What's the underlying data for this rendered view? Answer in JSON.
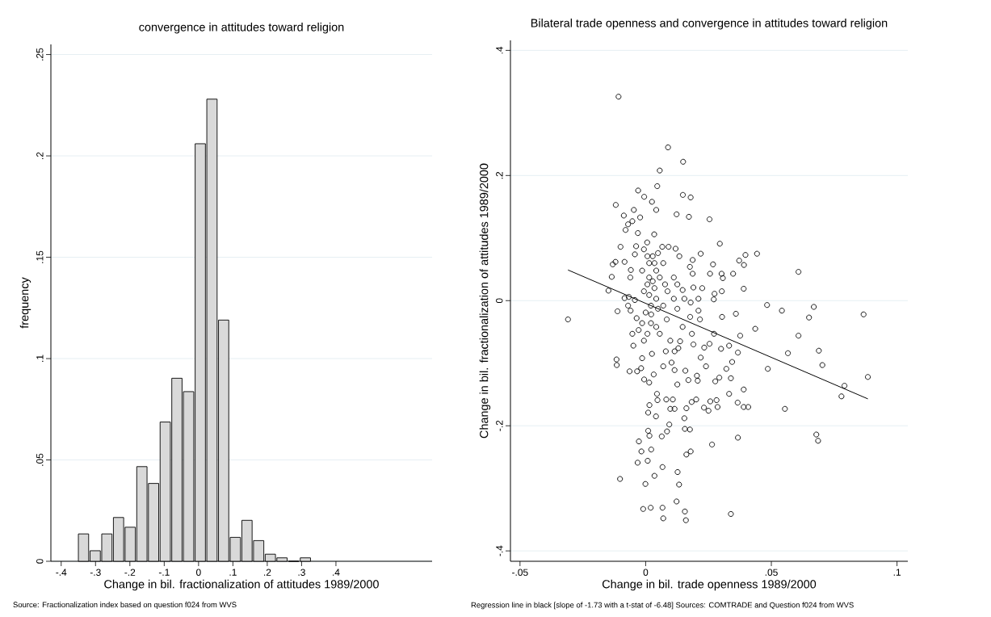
{
  "chart_data": [
    {
      "type": "histogram",
      "title": "convergence in attitudes toward religion",
      "xlabel": "Change in bil. fractionalization of attitudes 1989/2000",
      "ylabel": "frequency",
      "bins": [
        -0.352,
        -0.318,
        -0.284,
        -0.25,
        -0.216,
        -0.182,
        -0.148,
        -0.114,
        -0.08,
        -0.046,
        -0.012,
        0.022,
        0.056,
        0.09,
        0.124,
        0.158,
        0.192,
        0.226,
        0.26,
        0.294,
        0.328
      ],
      "values": [
        0.0135,
        0.0052,
        0.0135,
        0.0216,
        0.0168,
        0.0467,
        0.0384,
        0.0687,
        0.0903,
        0.0837,
        0.206,
        0.228,
        0.119,
        0.0118,
        0.0202,
        0.0102,
        0.0035,
        0.0017,
        0,
        0.0017
      ],
      "color": "#d9d9d9",
      "xlim": [
        -0.43,
        0.68
      ],
      "ylim": [
        0,
        0.255
      ],
      "xticks": [
        {
          "value": -0.4,
          "label": "-.4"
        },
        {
          "value": -0.3,
          "label": "-.3"
        },
        {
          "value": -0.2,
          "label": "-.2"
        },
        {
          "value": -0.1,
          "label": "-.1"
        },
        0,
        {
          "value": 0.1,
          "label": ".1"
        },
        {
          "value": 0.2,
          "label": ".2"
        },
        {
          "value": 0.3,
          "label": ".3"
        },
        {
          "value": 0.4,
          "label": ".4"
        }
      ],
      "yticks": [
        0,
        {
          "value": 0.05,
          "label": ".05"
        },
        {
          "value": 0.1,
          "label": ".1"
        },
        {
          "value": 0.15,
          "label": ".15"
        },
        {
          "value": 0.2,
          "label": ".2"
        },
        {
          "value": 0.25,
          "label": ".25"
        }
      ],
      "grid": "y",
      "annotations": [
        "Source: Fractionalization index based on question f024 from WVS"
      ]
    },
    {
      "type": "scatter",
      "title": "Bilateral trade openness and convergence in attitudes toward religion",
      "xlabel": "Change in bil. trade openness 1989/2000",
      "ylabel": "Change in bil. fractionalization of attitudes 1989/2000",
      "marker": "circle",
      "grid": "y",
      "xlim": [
        -0.0538,
        0.1043
      ],
      "ylim": [
        -0.4166,
        0.416
      ],
      "xticks": [
        {
          "value": -0.05,
          "label": "-.05"
        },
        0,
        {
          "value": 0.05,
          "label": ".05"
        },
        {
          "value": 0.1,
          "label": ".1"
        }
      ],
      "yticks": [
        {
          "value": -0.4,
          "label": "-.4"
        },
        {
          "value": -0.2,
          "label": "-.2"
        },
        0,
        {
          "value": 0.2,
          "label": ".2"
        },
        {
          "value": 0.4,
          "label": ".4"
        }
      ],
      "series": [
        {
          "type": "scatter",
          "color": "#000000",
          "x": [
            -0.0108,
            0.0089,
            0.0149,
            0.0056,
            0.0046,
            -0.003,
            -0.0006,
            0.0148,
            0.0179,
            0.0025,
            -0.0119,
            0.0042,
            -0.0047,
            0.0123,
            0.0172,
            0.0254,
            -0.0087,
            -0.0022,
            -0.0053,
            -0.007,
            -0.008,
            -0.0031,
            0.0034,
            0.0295,
            -0.01,
            0.0219,
            0.0397,
            0.0443,
            0.0372,
            0.0268,
            0.0391,
            0.0608,
            -0.0131,
            -0.012,
            -0.0084,
            -0.0135,
            0.0256,
            0.0302,
            0.0348,
            0.0307,
            0.039,
            -0.0148,
            0.0274,
            0.0303,
            0.0271,
            -0.0084,
            -0.0112,
            -0.0309,
            0.0483,
            0.0542,
            0.0669,
            0.065,
            0.0867,
            0.0359,
            0.0304,
            0.0436,
            0.0376,
            0.0608,
            0.0566,
            0.0689,
            0.0703,
            0.0486,
            0.0884,
            0.0791,
            0.0779,
            0.0554,
            0.0367,
            0.0332,
            0.03,
            0.0344,
            0.0321,
            0.0339,
            0.039,
            0.0332,
            0.0366,
            0.039,
            0.0408,
            0.0367,
            0.0679,
            0.0686,
            0.0264,
            0.0339,
            0.0293,
            0.0282,
            0.0257,
            0.025,
            0.0286,
            0.0232,
            0.0277,
            0.024,
            0.0219,
            0.0254,
            0.0272,
            0.0233,
            0.0204,
            0.0201,
            0.0162,
            0.0183,
            0.0154,
            0.0156,
            0.0176,
            0.0179,
            0.0162,
            0.0127,
            0.0133,
            0.0123,
            0.0156,
            0.016,
            0.0067,
            0.007,
            0.002,
            -0.001,
            -0.0001,
            -0.0102,
            0.0035,
            0.0067,
            -0.0032,
            0.0008,
            -0.0017,
            0.0022,
            -0.0027,
            0.0064,
            0.0015,
            0.001,
            0.0085,
            0.0094,
            0.0041,
            0.001,
            0.0015,
            0.0047,
            0.0082,
            0.0108,
            0.0115,
            0.0098,
            0.0045,
            -0.0006,
            0.0014,
            0.0032,
            -0.0018,
            -0.0064,
            -0.0034,
            -0.0116,
            -0.0115,
            0.007,
            0.0103,
            0.0115,
            0.0126,
            0.0158,
            0.017,
            0.0207,
            0.013,
            0.019,
            0.0184,
            0.0137,
            0.0098,
            0.0115,
            0.008,
            0.0147,
            0.0056,
            0.0025,
            -0.0014,
            -0.0049,
            -0.0053,
            -0.0014,
            -0.0036,
            0.0022,
            0.0084,
            0.0126,
            0.0154,
            0.0179,
            0.021,
            0.0216,
            0.0177,
            0.021,
            0.0225,
            0.019,
            0.0187,
            0.0176,
            0.0187,
            0.0134,
            0.0119,
            0.0091,
            0.0066,
            0.0006,
            -0.0038,
            -0.0043,
            -0.0059,
            -0.0061,
            -0.0067,
            -0.0043,
            -0.006,
            -0.007,
            0.0112,
            0.0087,
            0.0126,
            0.0147,
            0.0112,
            0.0007,
            0.0014,
            0.0028,
            0.0035,
            0.0042,
            0.0014,
            0.0028,
            0.0056,
            0.0007,
            0.0035,
            0.0014,
            0.0042,
            0.0021,
            0.0049,
            -0.0007,
            -0.0014,
            -0.0007,
            0.0049,
            0.007,
            0.0077,
            0.007,
            0.0,
            -0.0028,
            0.0007,
            -0.0007,
            0.0042,
            0.0021
          ],
          "values": [
            0.326,
            0.245,
            0.222,
            0.208,
            0.183,
            0.176,
            0.166,
            0.169,
            0.165,
            0.158,
            0.153,
            0.145,
            0.145,
            0.138,
            0.134,
            0.13,
            0.136,
            0.133,
            0.127,
            0.122,
            0.113,
            0.108,
            0.106,
            0.091,
            0.086,
            0.075,
            0.073,
            0.075,
            0.064,
            0.058,
            0.057,
            0.046,
            0.058,
            0.062,
            0.062,
            0.038,
            0.043,
            0.043,
            0.043,
            0.036,
            0.019,
            0.016,
            0.011,
            0.015,
            0.002,
            0.004,
            -0.017,
            -0.03,
            -0.007,
            -0.016,
            -0.01,
            -0.027,
            -0.022,
            -0.021,
            -0.026,
            -0.045,
            -0.056,
            -0.056,
            -0.084,
            -0.08,
            -0.103,
            -0.109,
            -0.122,
            -0.136,
            -0.153,
            -0.173,
            -0.083,
            -0.072,
            -0.077,
            -0.098,
            -0.109,
            -0.124,
            -0.142,
            -0.149,
            -0.163,
            -0.17,
            -0.17,
            -0.219,
            -0.214,
            -0.224,
            -0.23,
            -0.341,
            -0.123,
            -0.159,
            -0.161,
            -0.176,
            -0.17,
            -0.171,
            -0.129,
            -0.105,
            -0.091,
            -0.069,
            -0.053,
            -0.075,
            -0.12,
            -0.158,
            -0.172,
            -0.162,
            -0.188,
            -0.205,
            -0.206,
            -0.241,
            -0.246,
            -0.274,
            -0.294,
            -0.321,
            -0.337,
            -0.351,
            -0.331,
            -0.348,
            -0.331,
            -0.333,
            -0.293,
            -0.285,
            -0.28,
            -0.266,
            -0.259,
            -0.256,
            -0.241,
            -0.238,
            -0.225,
            -0.217,
            -0.216,
            -0.208,
            -0.209,
            -0.198,
            -0.185,
            -0.179,
            -0.167,
            -0.159,
            -0.158,
            -0.158,
            -0.173,
            -0.173,
            -0.149,
            -0.126,
            -0.131,
            -0.118,
            -0.108,
            -0.113,
            -0.113,
            -0.094,
            -0.103,
            -0.105,
            -0.099,
            -0.111,
            -0.134,
            -0.112,
            -0.127,
            -0.128,
            -0.076,
            -0.07,
            -0.053,
            -0.065,
            -0.064,
            -0.081,
            -0.081,
            -0.042,
            -0.053,
            -0.085,
            -0.092,
            -0.072,
            -0.053,
            -0.036,
            -0.028,
            -0.022,
            -0.03,
            -0.013,
            0.003,
            -0.003,
            -0.016,
            -0.03,
            -0.026,
            0.003,
            0.02,
            0.021,
            0.043,
            0.054,
            0.065,
            0.071,
            0.083,
            0.086,
            0.086,
            0.093,
            0.087,
            0.074,
            0.049,
            0.037,
            0.006,
            0.001,
            -0.016,
            -0.008,
            0.037,
            0.015,
            0.026,
            0.017,
            0.003,
            0.071,
            0.06,
            0.071,
            0.06,
            0.048,
            0.037,
            0.031,
            0.037,
            0.026,
            0.02,
            0.009,
            0.003,
            -0.008,
            -0.013,
            0.015,
            0.048,
            0.082,
            0.076,
            0.06,
            0.026,
            -0.008,
            -0.019,
            -0.047,
            -0.053,
            -0.064,
            -0.042,
            -0.036
          ]
        },
        {
          "type": "line",
          "color": "#000000",
          "marker": "none",
          "x": [
            -0.0309,
            0.0884
          ],
          "values": [
            0.049,
            -0.157
          ]
        }
      ],
      "annotations": [
        "Regression line in black [slope of -1.73 with a t-stat of -6.48] Sources: COMTRADE and Question f024 from WVS"
      ]
    }
  ]
}
